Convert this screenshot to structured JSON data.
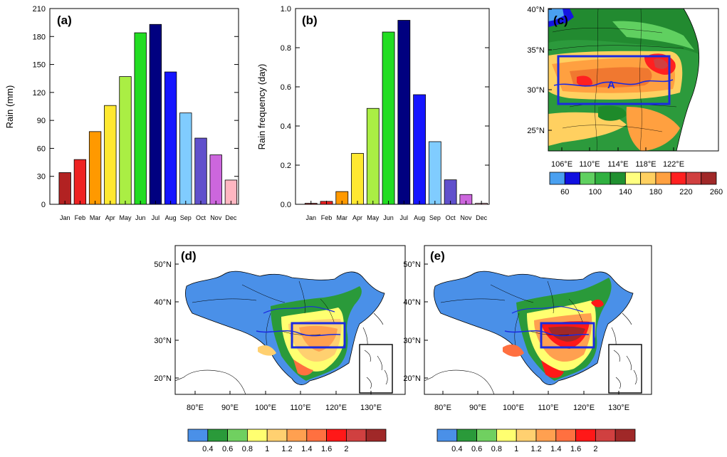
{
  "chart_data": [
    {
      "panel": "(a)",
      "type": "bar",
      "ylabel": "Rain (mm)",
      "ylim": [
        0,
        210
      ],
      "yticks": [
        "0",
        "30",
        "60",
        "90",
        "120",
        "150",
        "180",
        "210"
      ],
      "categories": [
        "Jan",
        "Feb",
        "Mar",
        "Apr",
        "May",
        "Jun",
        "Jul",
        "Aug",
        "Sep",
        "Oct",
        "Nov",
        "Dec"
      ],
      "values": [
        34,
        48,
        78,
        106,
        137,
        184,
        193,
        142,
        98,
        71,
        53,
        26
      ],
      "colors": [
        "#b22222",
        "#ee2222",
        "#ff9900",
        "#ffe830",
        "#aaee44",
        "#22dd22",
        "#000080",
        "#1515ff",
        "#80ccff",
        "#6050cc",
        "#cc66dd",
        "#ffb6c1"
      ]
    },
    {
      "panel": "(b)",
      "type": "bar",
      "ylabel": "Rain frequency (day)",
      "ylim": [
        0,
        1.0
      ],
      "yticks": [
        "0.0",
        "0.2",
        "0.4",
        "0.6",
        "0.8",
        "1.0"
      ],
      "categories": [
        "Jan",
        "Feb",
        "Mar",
        "Apr",
        "May",
        "Jun",
        "Jul",
        "Aug",
        "Sep",
        "Oct",
        "Nov",
        "Dec"
      ],
      "values": [
        0.005,
        0.015,
        0.065,
        0.26,
        0.49,
        0.88,
        0.94,
        0.56,
        0.32,
        0.125,
        0.05,
        0.005
      ],
      "colors": [
        "#b22222",
        "#ee2222",
        "#ff9900",
        "#ffe830",
        "#aaee44",
        "#22dd22",
        "#000080",
        "#1515ff",
        "#80ccff",
        "#6050cc",
        "#cc66dd",
        "#ffb6c1"
      ]
    },
    {
      "panel": "(c)",
      "type": "heatmap",
      "ylabels": [
        "40°N",
        "35°N",
        "30°N",
        "25°N"
      ],
      "xlabels": [
        "106°E",
        "110°E",
        "114°E",
        "118°E",
        "122°E"
      ],
      "box_label": "A",
      "colorbar_labels": [
        "60",
        "100",
        "140",
        "180",
        "220",
        "260"
      ],
      "colorbar_colors": [
        "#4aa0f0",
        "#1010e0",
        "#60d060",
        "#30b040",
        "#209030",
        "#ffff80",
        "#ffd060",
        "#ffa040",
        "#ff2020",
        "#d04040",
        "#a02828"
      ]
    },
    {
      "panel": "(d)",
      "type": "heatmap",
      "ylabels": [
        "50°N",
        "40°N",
        "30°N",
        "20°N"
      ],
      "xlabels": [
        "80°E",
        "90°E",
        "100°E",
        "110°E",
        "120°E",
        "130°E"
      ],
      "colorbar_labels": [
        "0.4",
        "0.6",
        "0.8",
        "1",
        "1.2",
        "1.4",
        "1.6",
        "2"
      ],
      "colorbar_colors": [
        "#4a90e8",
        "#2a9a3a",
        "#70d060",
        "#ffff70",
        "#ffd070",
        "#ffa050",
        "#ff7040",
        "#ff1818",
        "#d04040",
        "#a02828"
      ]
    },
    {
      "panel": "(e)",
      "type": "heatmap",
      "ylabels": [
        "50°N",
        "40°N",
        "30°N",
        "20°N"
      ],
      "xlabels": [
        "80°E",
        "90°E",
        "100°E",
        "110°E",
        "120°E",
        "130°E"
      ],
      "colorbar_labels": [
        "0.4",
        "0.6",
        "0.8",
        "1",
        "1.2",
        "1.4",
        "1.6",
        "2"
      ],
      "colorbar_colors": [
        "#4a90e8",
        "#2a9a3a",
        "#70d060",
        "#ffff70",
        "#ffd070",
        "#ffa050",
        "#ff7040",
        "#ff1818",
        "#d04040",
        "#a02828"
      ]
    }
  ]
}
